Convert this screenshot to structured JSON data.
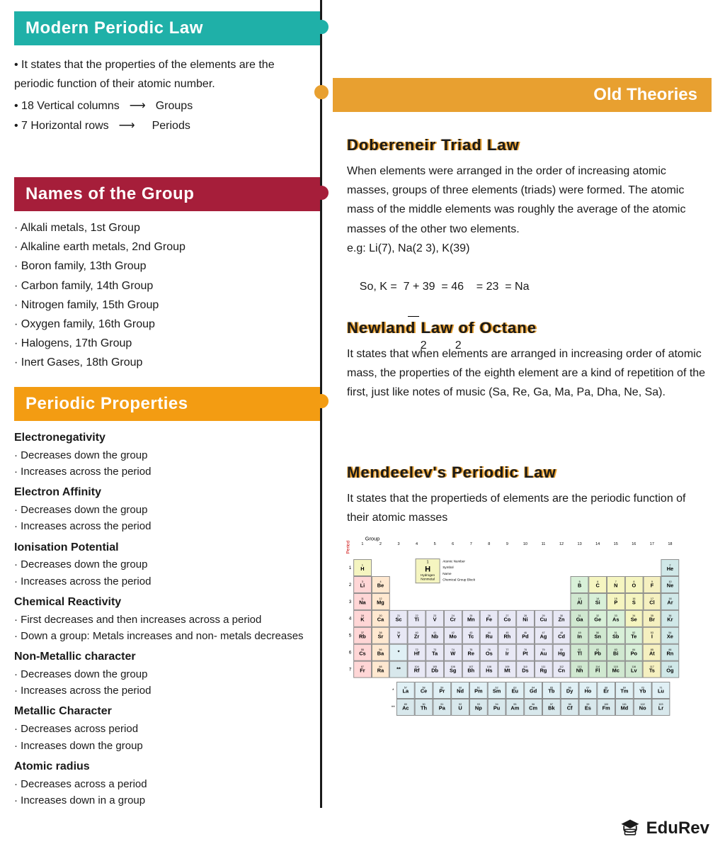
{
  "colors": {
    "teal": "#1fb0a8",
    "crimson": "#a61e3a",
    "orange": "#f39c12",
    "amber": "#e8a030",
    "timeline": "#1a1a1a",
    "text": "#1a1a1a"
  },
  "left": {
    "modern": {
      "title": "Modern Periodic Law",
      "body": "• It states that the properties of the elements are the periodic function of their atomic number.",
      "l1a": "• 18 Vertical columns",
      "l1b": "Groups",
      "l2a": "• 7 Horizontal rows",
      "l2b": "Periods"
    },
    "groups": {
      "title": "Names of the Group",
      "items": [
        "Alkali metals, 1st Group",
        "Alkaline earth metals, 2nd Group",
        "Boron family, 13th Group",
        "Carbon family, 14th Group",
        "Nitrogen family, 15th Group",
        "Oxygen family, 16th Group",
        "Halogens, 17th Group",
        "Inert Gases, 18th Group"
      ]
    },
    "props": {
      "title": "Periodic Properties",
      "sections": [
        {
          "h": "Electronegativity",
          "pts": [
            "Decreases down the group",
            "Increases across the period"
          ]
        },
        {
          "h": "Electron Affinity",
          "pts": [
            "Decreases down the group",
            "Increases across the period"
          ]
        },
        {
          "h": "Ionisation Potential",
          "pts": [
            "Decreases down the group",
            "Increases across the period"
          ]
        },
        {
          "h": "Chemical Reactivity",
          "pts": [
            "First decreases and then increases across a period",
            "Down a group: Metals increases and non- metals decreases"
          ]
        },
        {
          "h": "Non-Metallic character",
          "pts": [
            "Decreases down the group",
            "Increases across the period"
          ]
        },
        {
          "h": "Metallic Character",
          "pts": [
            "Decreases across period",
            "Increases down the group"
          ]
        },
        {
          "h": "Atomic radius",
          "pts": [
            "Decreases across a period",
            "Increases down in a group"
          ]
        }
      ]
    }
  },
  "right": {
    "old": {
      "title": "Old Theories"
    },
    "dober": {
      "title": "Dobereneir Triad Law",
      "body": "When elements were arranged in the order of increasing atomic masses, groups of three elements (triads) were formed. The atomic mass of the middle elements was roughly the average of the atomic masses of the other two elements.",
      "eg": "e.g: Li(7), Na(2 3), K(39)",
      "calc1": "So, K =  7 + 39  = 46    = 23  = Na",
      "calc2": "2         2"
    },
    "newland": {
      "title": "Newland Law of Octane",
      "body": "It states that when elements are arranged in increasing order of atomic mass, the properties of the eighth element are a kind of repetition of the first, just like notes of music (Sa, Re, Ga, Ma, Pa, Dha, Ne, Sa)."
    },
    "mendeleev": {
      "title": "Mendeelev's Periodic Law",
      "body": "It states that the propertieds of elements are the periodic function of their atomic masses"
    }
  },
  "periodic_table": {
    "period_label": "Period",
    "group_label": "Group",
    "legend": {
      "num": "1",
      "sym": "H",
      "name": "Hydrogen",
      "cat": "Nonmetal",
      "labels": [
        "Atomic Number",
        "Symbol",
        "Name",
        "Chemical Group Block"
      ]
    },
    "category_colors": {
      "alkali": "#ffd6d6",
      "alkaline": "#ffe8d0",
      "transition": "#e8e8f5",
      "post": "#d0e8d0",
      "metalloid": "#d8f0d8",
      "nonmetal": "#f5f5c0",
      "halogen": "#f5f0c0",
      "noble": "#d0e8e8",
      "lanth": "#e0f0f5",
      "act": "#d8e8ec"
    },
    "rows": [
      [
        {
          "n": 1,
          "s": "H",
          "c": "nonmetal"
        },
        null,
        null,
        null,
        null,
        null,
        null,
        null,
        null,
        null,
        null,
        null,
        null,
        null,
        null,
        null,
        null,
        {
          "n": 2,
          "s": "He",
          "c": "noble"
        }
      ],
      [
        {
          "n": 3,
          "s": "Li",
          "c": "alkali"
        },
        {
          "n": 4,
          "s": "Be",
          "c": "alkaline"
        },
        null,
        null,
        null,
        null,
        null,
        null,
        null,
        null,
        null,
        null,
        {
          "n": 5,
          "s": "B",
          "c": "metalloid"
        },
        {
          "n": 6,
          "s": "C",
          "c": "nonmetal"
        },
        {
          "n": 7,
          "s": "N",
          "c": "nonmetal"
        },
        {
          "n": 8,
          "s": "O",
          "c": "nonmetal"
        },
        {
          "n": 9,
          "s": "F",
          "c": "halogen"
        },
        {
          "n": 10,
          "s": "Ne",
          "c": "noble"
        }
      ],
      [
        {
          "n": 11,
          "s": "Na",
          "c": "alkali"
        },
        {
          "n": 12,
          "s": "Mg",
          "c": "alkaline"
        },
        null,
        null,
        null,
        null,
        null,
        null,
        null,
        null,
        null,
        null,
        {
          "n": 13,
          "s": "Al",
          "c": "post"
        },
        {
          "n": 14,
          "s": "Si",
          "c": "metalloid"
        },
        {
          "n": 15,
          "s": "P",
          "c": "nonmetal"
        },
        {
          "n": 16,
          "s": "S",
          "c": "nonmetal"
        },
        {
          "n": 17,
          "s": "Cl",
          "c": "halogen"
        },
        {
          "n": 18,
          "s": "Ar",
          "c": "noble"
        }
      ],
      [
        {
          "n": 19,
          "s": "K",
          "c": "alkali"
        },
        {
          "n": 20,
          "s": "Ca",
          "c": "alkaline"
        },
        {
          "n": 21,
          "s": "Sc",
          "c": "transition"
        },
        {
          "n": 22,
          "s": "Ti",
          "c": "transition"
        },
        {
          "n": 23,
          "s": "V",
          "c": "transition"
        },
        {
          "n": 24,
          "s": "Cr",
          "c": "transition"
        },
        {
          "n": 25,
          "s": "Mn",
          "c": "transition"
        },
        {
          "n": 26,
          "s": "Fe",
          "c": "transition"
        },
        {
          "n": 27,
          "s": "Co",
          "c": "transition"
        },
        {
          "n": 28,
          "s": "Ni",
          "c": "transition"
        },
        {
          "n": 29,
          "s": "Cu",
          "c": "transition"
        },
        {
          "n": 30,
          "s": "Zn",
          "c": "transition"
        },
        {
          "n": 31,
          "s": "Ga",
          "c": "post"
        },
        {
          "n": 32,
          "s": "Ge",
          "c": "metalloid"
        },
        {
          "n": 33,
          "s": "As",
          "c": "metalloid"
        },
        {
          "n": 34,
          "s": "Se",
          "c": "nonmetal"
        },
        {
          "n": 35,
          "s": "Br",
          "c": "halogen"
        },
        {
          "n": 36,
          "s": "Kr",
          "c": "noble"
        }
      ],
      [
        {
          "n": 37,
          "s": "Rb",
          "c": "alkali"
        },
        {
          "n": 38,
          "s": "Sr",
          "c": "alkaline"
        },
        {
          "n": 39,
          "s": "Y",
          "c": "transition"
        },
        {
          "n": 40,
          "s": "Zr",
          "c": "transition"
        },
        {
          "n": 41,
          "s": "Nb",
          "c": "transition"
        },
        {
          "n": 42,
          "s": "Mo",
          "c": "transition"
        },
        {
          "n": 43,
          "s": "Tc",
          "c": "transition"
        },
        {
          "n": 44,
          "s": "Ru",
          "c": "transition"
        },
        {
          "n": 45,
          "s": "Rh",
          "c": "transition"
        },
        {
          "n": 46,
          "s": "Pd",
          "c": "transition"
        },
        {
          "n": 47,
          "s": "Ag",
          "c": "transition"
        },
        {
          "n": 48,
          "s": "Cd",
          "c": "transition"
        },
        {
          "n": 49,
          "s": "In",
          "c": "post"
        },
        {
          "n": 50,
          "s": "Sn",
          "c": "post"
        },
        {
          "n": 51,
          "s": "Sb",
          "c": "metalloid"
        },
        {
          "n": 52,
          "s": "Te",
          "c": "metalloid"
        },
        {
          "n": 53,
          "s": "I",
          "c": "halogen"
        },
        {
          "n": 54,
          "s": "Xe",
          "c": "noble"
        }
      ],
      [
        {
          "n": 55,
          "s": "Cs",
          "c": "alkali"
        },
        {
          "n": 56,
          "s": "Ba",
          "c": "alkaline"
        },
        {
          "n": "",
          "s": "*",
          "c": "lanth"
        },
        {
          "n": 72,
          "s": "Hf",
          "c": "transition"
        },
        {
          "n": 73,
          "s": "Ta",
          "c": "transition"
        },
        {
          "n": 74,
          "s": "W",
          "c": "transition"
        },
        {
          "n": 75,
          "s": "Re",
          "c": "transition"
        },
        {
          "n": 76,
          "s": "Os",
          "c": "transition"
        },
        {
          "n": 77,
          "s": "Ir",
          "c": "transition"
        },
        {
          "n": 78,
          "s": "Pt",
          "c": "transition"
        },
        {
          "n": 79,
          "s": "Au",
          "c": "transition"
        },
        {
          "n": 80,
          "s": "Hg",
          "c": "transition"
        },
        {
          "n": 81,
          "s": "Tl",
          "c": "post"
        },
        {
          "n": 82,
          "s": "Pb",
          "c": "post"
        },
        {
          "n": 83,
          "s": "Bi",
          "c": "post"
        },
        {
          "n": 84,
          "s": "Po",
          "c": "metalloid"
        },
        {
          "n": 85,
          "s": "At",
          "c": "halogen"
        },
        {
          "n": 86,
          "s": "Rn",
          "c": "noble"
        }
      ],
      [
        {
          "n": 87,
          "s": "Fr",
          "c": "alkali"
        },
        {
          "n": 88,
          "s": "Ra",
          "c": "alkaline"
        },
        {
          "n": "",
          "s": "**",
          "c": "act"
        },
        {
          "n": 104,
          "s": "Rf",
          "c": "transition"
        },
        {
          "n": 105,
          "s": "Db",
          "c": "transition"
        },
        {
          "n": 106,
          "s": "Sg",
          "c": "transition"
        },
        {
          "n": 107,
          "s": "Bh",
          "c": "transition"
        },
        {
          "n": 108,
          "s": "Hs",
          "c": "transition"
        },
        {
          "n": 109,
          "s": "Mt",
          "c": "transition"
        },
        {
          "n": 110,
          "s": "Ds",
          "c": "transition"
        },
        {
          "n": 111,
          "s": "Rg",
          "c": "transition"
        },
        {
          "n": 112,
          "s": "Cn",
          "c": "transition"
        },
        {
          "n": 113,
          "s": "Nh",
          "c": "post"
        },
        {
          "n": 114,
          "s": "Fl",
          "c": "post"
        },
        {
          "n": 115,
          "s": "Mc",
          "c": "post"
        },
        {
          "n": 116,
          "s": "Lv",
          "c": "post"
        },
        {
          "n": 117,
          "s": "Ts",
          "c": "halogen"
        },
        {
          "n": 118,
          "s": "Og",
          "c": "noble"
        }
      ]
    ],
    "lanth": [
      {
        "n": 57,
        "s": "La"
      },
      {
        "n": 58,
        "s": "Ce"
      },
      {
        "n": 59,
        "s": "Pr"
      },
      {
        "n": 60,
        "s": "Nd"
      },
      {
        "n": 61,
        "s": "Pm"
      },
      {
        "n": 62,
        "s": "Sm"
      },
      {
        "n": 63,
        "s": "Eu"
      },
      {
        "n": 64,
        "s": "Gd"
      },
      {
        "n": 65,
        "s": "Tb"
      },
      {
        "n": 66,
        "s": "Dy"
      },
      {
        "n": 67,
        "s": "Ho"
      },
      {
        "n": 68,
        "s": "Er"
      },
      {
        "n": 69,
        "s": "Tm"
      },
      {
        "n": 70,
        "s": "Yb"
      },
      {
        "n": 71,
        "s": "Lu"
      }
    ],
    "act": [
      {
        "n": 89,
        "s": "Ac"
      },
      {
        "n": 90,
        "s": "Th"
      },
      {
        "n": 91,
        "s": "Pa"
      },
      {
        "n": 92,
        "s": "U"
      },
      {
        "n": 93,
        "s": "Np"
      },
      {
        "n": 94,
        "s": "Pu"
      },
      {
        "n": 95,
        "s": "Am"
      },
      {
        "n": 96,
        "s": "Cm"
      },
      {
        "n": 97,
        "s": "Bk"
      },
      {
        "n": 98,
        "s": "Cf"
      },
      {
        "n": 99,
        "s": "Es"
      },
      {
        "n": 100,
        "s": "Fm"
      },
      {
        "n": 101,
        "s": "Md"
      },
      {
        "n": 102,
        "s": "No"
      },
      {
        "n": 103,
        "s": "Lr"
      }
    ]
  },
  "brand": "EduRev"
}
